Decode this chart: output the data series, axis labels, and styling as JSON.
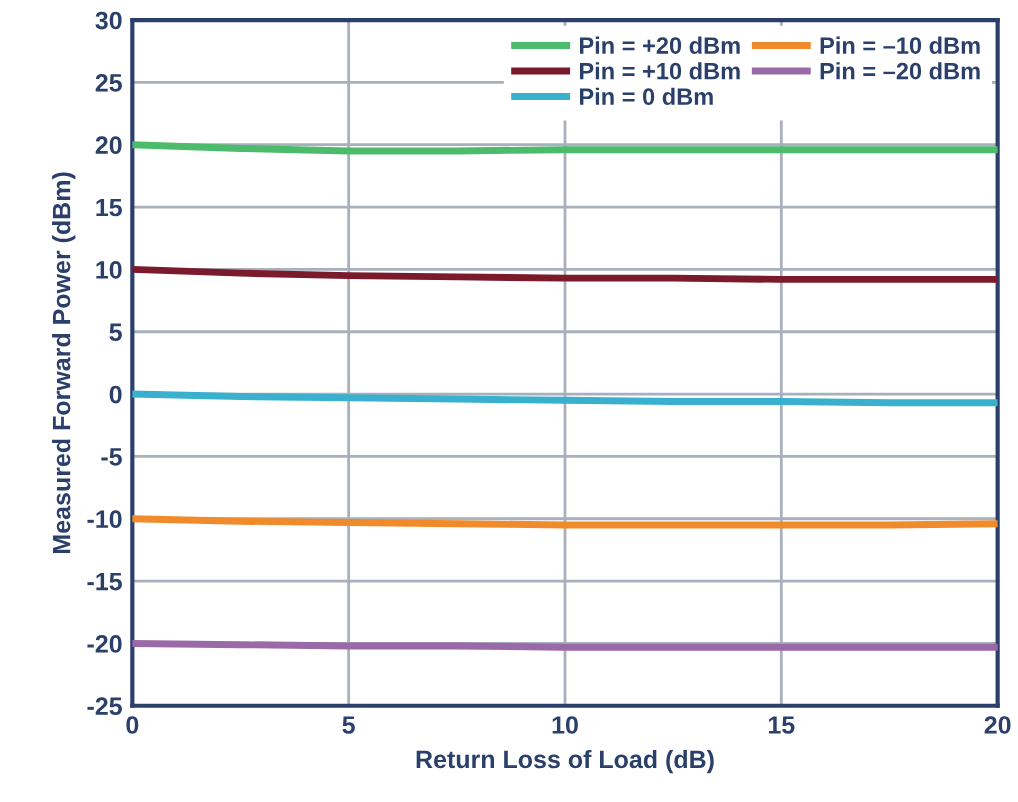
{
  "chart_data": {
    "type": "line",
    "xlabel": "Return Loss of Load (dB)",
    "ylabel": "Measured Forward Power (dBm)",
    "x": [
      0,
      2.5,
      5,
      7.5,
      10,
      12.5,
      15,
      17.5,
      20
    ],
    "series": [
      {
        "name": "Pin = +20 dBm",
        "color": "#4cbb6c",
        "values": [
          20,
          19.7,
          19.5,
          19.5,
          19.6,
          19.6,
          19.6,
          19.6,
          19.6
        ]
      },
      {
        "name": "Pin = +10 dBm",
        "color": "#7b1a2a",
        "values": [
          10,
          9.7,
          9.5,
          9.4,
          9.3,
          9.3,
          9.2,
          9.2,
          9.2
        ]
      },
      {
        "name": "Pin = 0 dBm",
        "color": "#3ab0cf",
        "values": [
          0,
          -0.2,
          -0.3,
          -0.4,
          -0.5,
          -0.6,
          -0.6,
          -0.7,
          -0.7
        ]
      },
      {
        "name": "Pin = –10 dBm",
        "color": "#f08a2a",
        "values": [
          -10,
          -10.2,
          -10.3,
          -10.4,
          -10.5,
          -10.5,
          -10.5,
          -10.5,
          -10.4
        ]
      },
      {
        "name": "Pin = –20 dBm",
        "color": "#9a6aa8",
        "values": [
          -20,
          -20.1,
          -20.2,
          -20.2,
          -20.3,
          -20.3,
          -20.3,
          -20.3,
          -20.3
        ]
      }
    ],
    "xlim": [
      0,
      20
    ],
    "xticks": [
      0,
      5,
      10,
      15,
      20
    ],
    "ylim": [
      -25,
      30
    ],
    "yticks": [
      -25,
      -20,
      -15,
      -10,
      -5,
      0,
      5,
      10,
      15,
      20,
      25,
      30
    ],
    "grid": true,
    "legend": "top right",
    "marker": "none",
    "line_style": "solid"
  }
}
